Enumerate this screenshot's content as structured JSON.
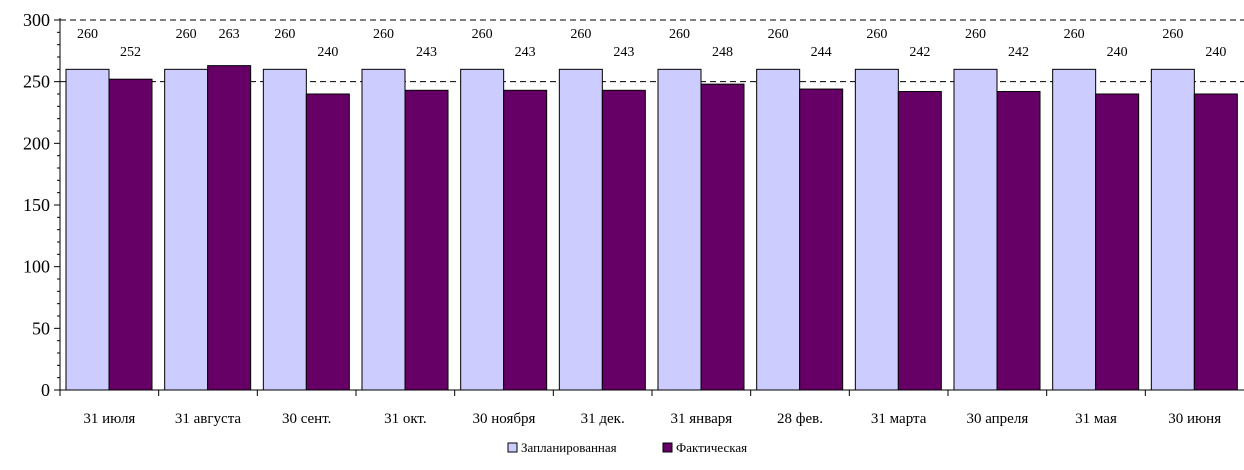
{
  "chart_data": {
    "type": "bar",
    "categories": [
      "31 июля",
      "31 августа",
      "30 сент.",
      "31 окт.",
      "30 ноября",
      "31 дек.",
      "31 января",
      "28 фев.",
      "31 марта",
      "30 апреля",
      "31  мая",
      "30 июня"
    ],
    "series": [
      {
        "name": "Запланированная",
        "color": "#ccccff",
        "values": [
          260,
          260,
          260,
          260,
          260,
          260,
          260,
          260,
          260,
          260,
          260,
          260
        ]
      },
      {
        "name": "Фактическая",
        "color": "#660066",
        "values": [
          252,
          263,
          240,
          243,
          243,
          243,
          248,
          244,
          242,
          242,
          240,
          240
        ]
      }
    ],
    "ylim": [
      0,
      300
    ],
    "yticks": [
      0,
      50,
      100,
      150,
      200,
      250,
      300
    ],
    "reference_lines": [
      250,
      300
    ],
    "grid": false,
    "legend_position": "bottom-center"
  }
}
